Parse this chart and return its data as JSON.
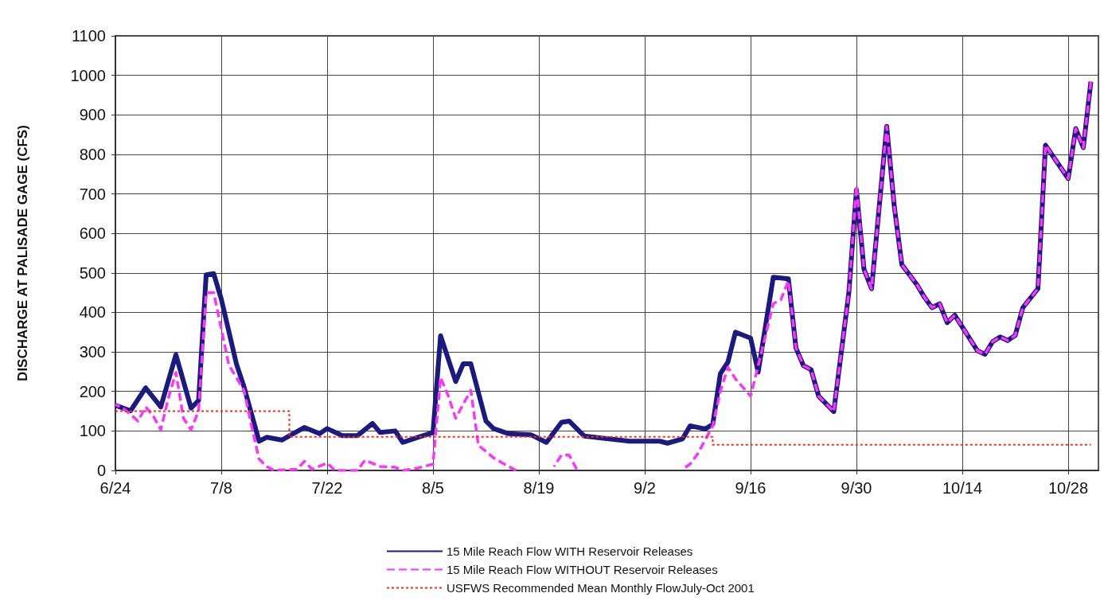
{
  "chart_data": {
    "type": "line",
    "ylabel": "DISCHARGE AT PALISADE GAGE (CFS)",
    "xlim": [
      "--06-24",
      "--11-01"
    ],
    "xticks": [
      {
        "value": "--06-24",
        "label": "6/24"
      },
      {
        "value": "--07-08",
        "label": "7/8"
      },
      {
        "value": "--07-22",
        "label": "7/22"
      },
      {
        "value": "--08-05",
        "label": "8/5"
      },
      {
        "value": "--08-19",
        "label": "8/19"
      },
      {
        "value": "--09-02",
        "label": "9/2"
      },
      {
        "value": "--09-16",
        "label": "9/16"
      },
      {
        "value": "--09-30",
        "label": "9/30"
      },
      {
        "value": "--10-14",
        "label": "10/14"
      },
      {
        "value": "--10-28",
        "label": "10/28"
      }
    ],
    "ylim": [
      0,
      1100
    ],
    "yticks": [
      0,
      100,
      200,
      300,
      400,
      500,
      600,
      700,
      800,
      900,
      1000,
      1100
    ],
    "grid": true,
    "legend": "bottom",
    "series": [
      {
        "name": "15 Mile Reach Flow WITH Reservoir Releases",
        "line_style": "solid",
        "color": "#1a1a80",
        "x": [
          "--06-24",
          "--06-26",
          "--06-28",
          "--06-30",
          "--07-02",
          "--07-04",
          "--07-05",
          "--07-06",
          "--07-07",
          "--07-08",
          "--07-10",
          "--07-11",
          "--07-13",
          "--07-14",
          "--07-16",
          "--07-19",
          "--07-21",
          "--07-22",
          "--07-24",
          "--07-26",
          "--07-28",
          "--07-29",
          "--07-31",
          "--08-01",
          "--08-03",
          "--08-05",
          "--08-06",
          "--08-08",
          "--08-09",
          "--08-10",
          "--08-12",
          "--08-13",
          "--08-15",
          "--08-18",
          "--08-20",
          "--08-22",
          "--08-23",
          "--08-25",
          "--08-31",
          "--09-04",
          "--09-05",
          "--09-07",
          "--09-08",
          "--09-10",
          "--09-11",
          "--09-12",
          "--09-13",
          "--09-14",
          "--09-16",
          "--09-17",
          "--09-19",
          "--09-21",
          "--09-22",
          "--09-23",
          "--09-24",
          "--09-25",
          "--09-27",
          "--09-29",
          "--09-30",
          "--10-01",
          "--10-02",
          "--10-04",
          "--10-05",
          "--10-06",
          "--10-08",
          "--10-09",
          "--10-10",
          "--10-11",
          "--10-12",
          "--10-13",
          "--10-16",
          "--10-17",
          "--10-18",
          "--10-19",
          "--10-20",
          "--10-21",
          "--10-22",
          "--10-24",
          "--10-25",
          "--10-28",
          "--10-29",
          "--10-30",
          "--10-31"
        ],
        "values": [
          165,
          151,
          209,
          161,
          293,
          158,
          177,
          495,
          498,
          434,
          270,
          212,
          74,
          84,
          77,
          109,
          93,
          106,
          88,
          88,
          119,
          96,
          100,
          71,
          84,
          96,
          341,
          225,
          270,
          270,
          125,
          106,
          93,
          90,
          71,
          122,
          125,
          87,
          74,
          74,
          69,
          80,
          113,
          105,
          117,
          245,
          274,
          350,
          335,
          249,
          489,
          485,
          310,
          265,
          255,
          188,
          149,
          451,
          710,
          509,
          460,
          871,
          669,
          521,
          470,
          438,
          412,
          422,
          374,
          393,
          303,
          294,
          326,
          338,
          329,
          342,
          412,
          460,
          823,
          739,
          865,
          817,
          984
        ]
      },
      {
        "name": "15 Mile Reach Flow WITHOUT Reservoir Releases",
        "line_style": "dashed",
        "color": "#ff33ff",
        "x": [
          "--06-24",
          "--06-25",
          "--06-27",
          "--06-28",
          "--06-29",
          "--06-30",
          "--07-01",
          "--07-02",
          "--07-03",
          "--07-04",
          "--07-05",
          "--07-06",
          "--07-07",
          "--07-09",
          "--07-11",
          "--07-12",
          "--07-13",
          "--07-14",
          "--07-15",
          "--07-18",
          "--07-19",
          "--07-20",
          "--07-22",
          "--07-23",
          "--07-26",
          "--07-27",
          "--07-29",
          "--07-31",
          "--08-01",
          "--08-03",
          "--08-05",
          "--08-06",
          "--08-07",
          "--08-08",
          "--08-10",
          "--08-11",
          "--08-13",
          "--08-15",
          "--08-16",
          "--08-17",
          "--08-21",
          "--08-22",
          "--08-23",
          "--08-24",
          "--08-25",
          "--09-07",
          "--09-08",
          "--09-09",
          "--09-11",
          "--09-12",
          "--09-13",
          "--09-14",
          "--09-16",
          "--09-17",
          "--09-19",
          "--09-20",
          "--09-21",
          "--09-22",
          "--09-23",
          "--09-24",
          "--09-25",
          "--09-27",
          "--09-29",
          "--09-30",
          "--10-01",
          "--10-02",
          "--10-04",
          "--10-05",
          "--10-06",
          "--10-08",
          "--10-09",
          "--10-10",
          "--10-11",
          "--10-12",
          "--10-13",
          "--10-16",
          "--10-17",
          "--10-18",
          "--10-19",
          "--10-20",
          "--10-21",
          "--10-22",
          "--10-24",
          "--10-25",
          "--10-28",
          "--10-29",
          "--10-30",
          "--10-31"
        ],
        "values": [
          167,
          158,
          125,
          161,
          138,
          103,
          183,
          248,
          132,
          103,
          151,
          450,
          450,
          267,
          203,
          113,
          29,
          10,
          0,
          3,
          23,
          3,
          19,
          0,
          0,
          26,
          10,
          8,
          0,
          6,
          16,
          235,
          190,
          132,
          203,
          64,
          32,
          10,
          0,
          null,
          10,
          39,
          39,
          3,
          null,
          3,
          16,
          42,
          113,
          200,
          261,
          232,
          188,
          265,
          422,
          432,
          480,
          310,
          265,
          255,
          188,
          149,
          451,
          720,
          509,
          460,
          871,
          669,
          521,
          470,
          438,
          412,
          422,
          374,
          393,
          303,
          294,
          326,
          338,
          329,
          342,
          412,
          460,
          823,
          739,
          865,
          817,
          984
        ]
      },
      {
        "name": "USFWS Recommended Mean Monthly FlowJuly-Oct 2001",
        "type": "step",
        "line_style": "dotted",
        "color": "#ff2a1a",
        "x": [
          "--06-24",
          "--07-17",
          "--09-11",
          "--10-31"
        ],
        "values": [
          150,
          85,
          65,
          65
        ]
      }
    ]
  }
}
